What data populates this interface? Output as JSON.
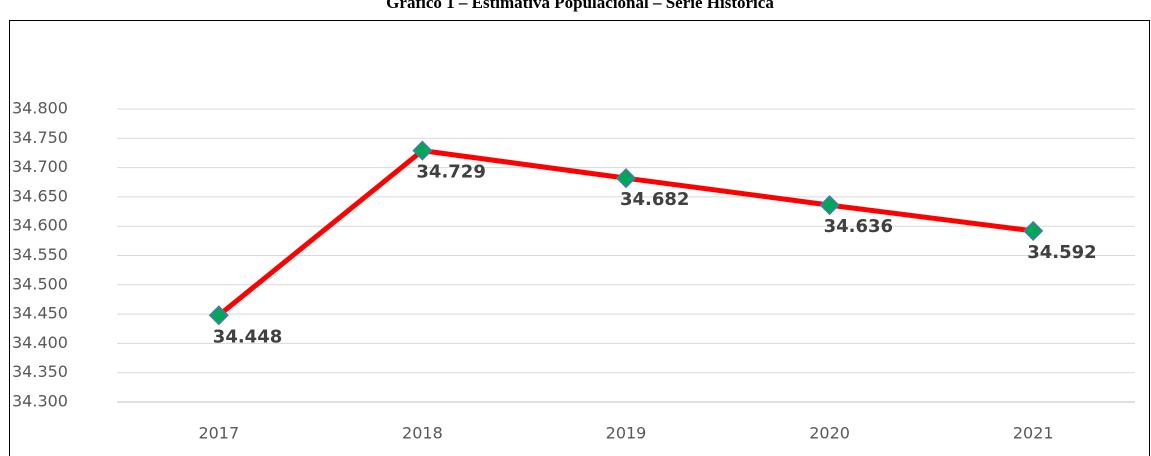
{
  "chart_data": {
    "type": "line",
    "title": "Gráfico 1 – Estimativa Populacional – Série Histórica",
    "categories": [
      "2017",
      "2018",
      "2019",
      "2020",
      "2021"
    ],
    "series": [
      {
        "name": "Estimativa Populacional",
        "color": "#ff0000",
        "marker_color": "#00a65a",
        "values": [
          34448,
          34729,
          34682,
          34636,
          34592
        ],
        "value_labels": [
          "34.448",
          "34.729",
          "34.682",
          "34.636",
          "34.592"
        ]
      }
    ],
    "ylim": [
      34300,
      34800
    ],
    "yticks": [
      {
        "value": 34300,
        "label": "34.300"
      },
      {
        "value": 34350,
        "label": "34.350"
      },
      {
        "value": 34400,
        "label": "34.400"
      },
      {
        "value": 34450,
        "label": "34.450"
      },
      {
        "value": 34500,
        "label": "34.500"
      },
      {
        "value": 34550,
        "label": "34.550"
      },
      {
        "value": 34600,
        "label": "34.600"
      },
      {
        "value": 34650,
        "label": "34.650"
      },
      {
        "value": 34700,
        "label": "34.700"
      },
      {
        "value": 34750,
        "label": "34.750"
      },
      {
        "value": 34800,
        "label": "34.800"
      }
    ],
    "grid": true
  }
}
